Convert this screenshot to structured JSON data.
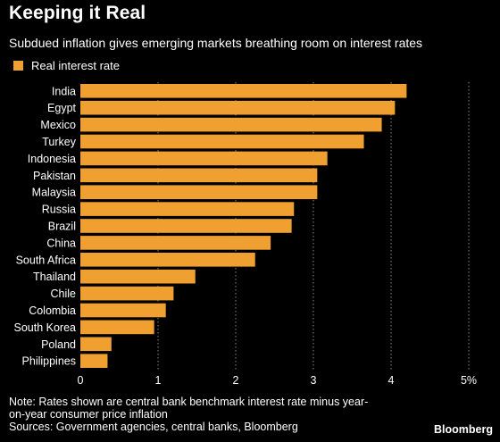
{
  "header": {
    "title": "Keeping it Real",
    "subtitle": "Subdued inflation gives emerging markets breathing room on interest rates"
  },
  "legend": {
    "label": "Real interest rate"
  },
  "colors": {
    "bar": "#f0a030",
    "background": "#000000",
    "text": "#ffffff",
    "grid": "#888888"
  },
  "chart_data": {
    "type": "bar",
    "orientation": "horizontal",
    "categories": [
      "India",
      "Egypt",
      "Mexico",
      "Turkey",
      "Indonesia",
      "Pakistan",
      "Malaysia",
      "Russia",
      "Brazil",
      "China",
      "South Africa",
      "Thailand",
      "Chile",
      "Colombia",
      "South Korea",
      "Poland",
      "Philippines"
    ],
    "series": [
      {
        "name": "Real interest rate",
        "values": [
          4.2,
          4.05,
          3.88,
          3.65,
          3.18,
          3.05,
          3.05,
          2.75,
          2.72,
          2.45,
          2.25,
          1.48,
          1.2,
          1.1,
          0.95,
          0.4,
          0.35
        ]
      }
    ],
    "xlim": [
      0,
      5
    ],
    "x_ticks": [
      "0",
      "1",
      "2",
      "3",
      "4",
      "5%"
    ],
    "grid": "vertical dotted"
  },
  "footer": {
    "note_line1": "Note: Rates shown are central bank benchmark interest rate minus year-",
    "note_line2": "on-year consumer price inflation",
    "sources": "Sources: Government agencies, central banks, Bloomberg",
    "logo": "Bloomberg"
  }
}
